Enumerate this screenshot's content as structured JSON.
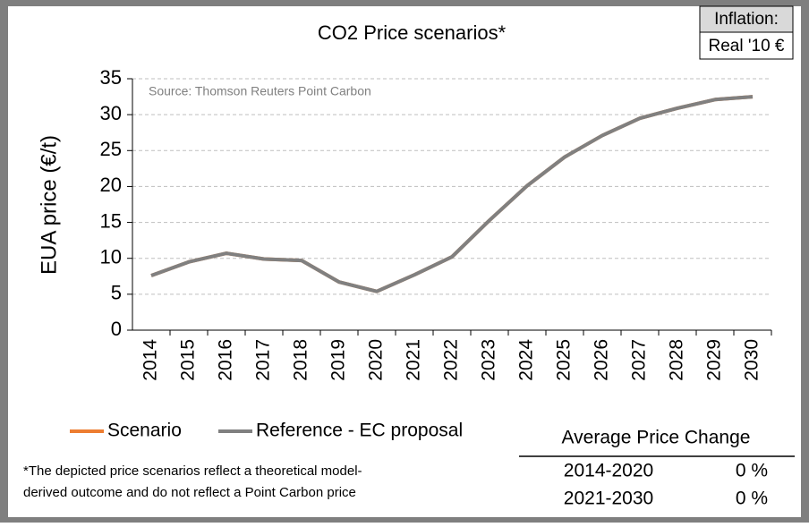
{
  "chart_data": {
    "type": "line",
    "title": "CO2 Price scenarios*",
    "ylabel": "EUA price (€/t)",
    "annotation": "Source: Thomson Reuters Point Carbon",
    "categories": [
      "2014",
      "2015",
      "2016",
      "2017",
      "2018",
      "2019",
      "2020",
      "2021",
      "2022",
      "2023",
      "2024",
      "2025",
      "2026",
      "2027",
      "2028",
      "2029",
      "2030"
    ],
    "series": [
      {
        "name": "Scenario",
        "color": "#ed7d31",
        "values": [
          7.6,
          9.5,
          10.7,
          9.9,
          9.7,
          6.7,
          5.4,
          7.7,
          10.2,
          15.3,
          20.1,
          24.1,
          27.1,
          29.5,
          30.9,
          32.1,
          32.5
        ]
      },
      {
        "name": "Reference - EC proposal",
        "color": "#808080",
        "values": [
          7.6,
          9.5,
          10.7,
          9.9,
          9.7,
          6.7,
          5.4,
          7.7,
          10.2,
          15.3,
          20.1,
          24.1,
          27.1,
          29.5,
          30.9,
          32.1,
          32.5
        ]
      }
    ],
    "ylim": [
      0,
      35
    ],
    "yticks": [
      0,
      5,
      10,
      15,
      20,
      25,
      30,
      35
    ],
    "grid": true,
    "inflation": {
      "label": "Inflation:",
      "value": "Real '10 €"
    },
    "footnote": [
      "*The depicted price scenarios reflect a theoretical model-",
      "derived outcome and do not reflect a Point Carbon price"
    ],
    "table": {
      "header": "Average Price Change",
      "rows": [
        [
          "2014-2020",
          "0 %"
        ],
        [
          "2021-2030",
          "0 %"
        ]
      ]
    }
  }
}
